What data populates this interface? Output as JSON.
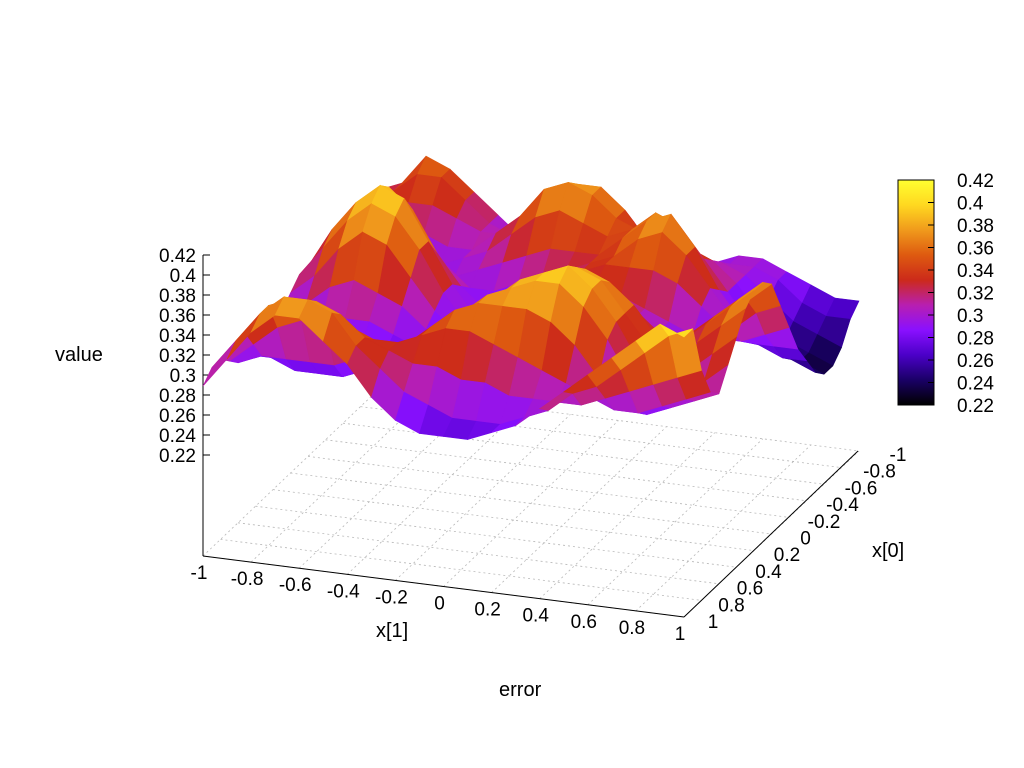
{
  "chart_data": {
    "type": "surface3d",
    "title": "error",
    "xlabel": "x[1]",
    "ylabel": "x[0]",
    "zlabel": "value",
    "x_ticks": [
      "-1",
      "-0.8",
      "-0.6",
      "-0.4",
      "-0.2",
      "0",
      "0.2",
      "0.4",
      "0.6",
      "0.8",
      "1"
    ],
    "y_ticks": [
      "-1",
      "-0.8",
      "-0.6",
      "-0.4",
      "-0.2",
      "0",
      "0.2",
      "0.4",
      "0.6",
      "0.8",
      "1"
    ],
    "z_ticks": [
      "0.42",
      "0.4",
      "0.38",
      "0.36",
      "0.34",
      "0.32",
      "0.3",
      "0.28",
      "0.26",
      "0.24",
      "0.22"
    ],
    "colorbar_ticks": [
      "0.42",
      "0.4",
      "0.38",
      "0.36",
      "0.34",
      "0.32",
      "0.3",
      "0.28",
      "0.26",
      "0.24",
      "0.22"
    ],
    "xlim": [
      -1,
      1
    ],
    "ylim": [
      -1,
      1
    ],
    "zlim": [
      0.22,
      0.42
    ],
    "grid": true,
    "colormap": [
      "#000000",
      "#1a0066",
      "#4b00c8",
      "#8a10ff",
      "#b81fb0",
      "#cc2a1a",
      "#de5a10",
      "#f09a1c",
      "#ffd820",
      "#ffff30"
    ],
    "surface_z": [
      [
        0.32,
        0.33,
        0.36,
        0.35,
        0.33,
        0.31,
        0.29,
        0.28,
        0.29,
        0.31,
        0.31,
        0.3,
        0.29,
        0.28,
        0.29,
        0.3,
        0.3,
        0.29,
        0.28,
        0.27,
        0.27
      ],
      [
        0.32,
        0.33,
        0.35,
        0.35,
        0.33,
        0.31,
        0.3,
        0.3,
        0.33,
        0.35,
        0.35,
        0.33,
        0.3,
        0.29,
        0.29,
        0.3,
        0.3,
        0.29,
        0.27,
        0.26,
        0.26
      ],
      [
        0.31,
        0.32,
        0.33,
        0.33,
        0.32,
        0.31,
        0.31,
        0.33,
        0.36,
        0.37,
        0.37,
        0.35,
        0.32,
        0.31,
        0.31,
        0.31,
        0.3,
        0.28,
        0.26,
        0.25,
        0.24
      ],
      [
        0.3,
        0.3,
        0.31,
        0.31,
        0.3,
        0.3,
        0.32,
        0.34,
        0.37,
        0.38,
        0.37,
        0.35,
        0.34,
        0.34,
        0.33,
        0.32,
        0.3,
        0.27,
        0.25,
        0.24,
        0.23
      ],
      [
        0.29,
        0.29,
        0.29,
        0.29,
        0.29,
        0.3,
        0.31,
        0.33,
        0.35,
        0.36,
        0.35,
        0.34,
        0.35,
        0.37,
        0.36,
        0.33,
        0.3,
        0.27,
        0.25,
        0.24,
        0.23
      ],
      [
        0.29,
        0.3,
        0.31,
        0.31,
        0.3,
        0.29,
        0.3,
        0.31,
        0.32,
        0.33,
        0.33,
        0.33,
        0.35,
        0.37,
        0.38,
        0.35,
        0.31,
        0.28,
        0.26,
        0.25,
        0.24
      ],
      [
        0.3,
        0.32,
        0.35,
        0.36,
        0.34,
        0.31,
        0.29,
        0.29,
        0.3,
        0.31,
        0.32,
        0.33,
        0.34,
        0.36,
        0.37,
        0.35,
        0.32,
        0.29,
        0.27,
        0.26,
        0.26
      ],
      [
        0.31,
        0.34,
        0.37,
        0.39,
        0.37,
        0.33,
        0.3,
        0.28,
        0.28,
        0.29,
        0.31,
        0.33,
        0.34,
        0.34,
        0.34,
        0.33,
        0.31,
        0.29,
        0.28,
        0.28,
        0.28
      ],
      [
        0.31,
        0.35,
        0.38,
        0.4,
        0.39,
        0.35,
        0.31,
        0.28,
        0.27,
        0.28,
        0.3,
        0.32,
        0.33,
        0.32,
        0.31,
        0.3,
        0.29,
        0.29,
        0.29,
        0.3,
        0.31
      ],
      [
        0.31,
        0.34,
        0.37,
        0.39,
        0.38,
        0.35,
        0.31,
        0.28,
        0.27,
        0.28,
        0.3,
        0.32,
        0.33,
        0.32,
        0.31,
        0.3,
        0.29,
        0.3,
        0.31,
        0.33,
        0.34
      ],
      [
        0.3,
        0.32,
        0.35,
        0.37,
        0.36,
        0.33,
        0.3,
        0.28,
        0.27,
        0.28,
        0.3,
        0.32,
        0.34,
        0.34,
        0.33,
        0.31,
        0.3,
        0.31,
        0.33,
        0.35,
        0.37
      ],
      [
        0.29,
        0.3,
        0.32,
        0.33,
        0.32,
        0.31,
        0.29,
        0.28,
        0.28,
        0.29,
        0.31,
        0.33,
        0.35,
        0.36,
        0.35,
        0.33,
        0.31,
        0.32,
        0.34,
        0.36,
        0.38
      ],
      [
        0.28,
        0.29,
        0.29,
        0.3,
        0.3,
        0.29,
        0.28,
        0.28,
        0.29,
        0.31,
        0.33,
        0.35,
        0.37,
        0.38,
        0.37,
        0.35,
        0.32,
        0.32,
        0.34,
        0.36,
        0.38
      ],
      [
        0.28,
        0.28,
        0.28,
        0.28,
        0.28,
        0.28,
        0.28,
        0.29,
        0.31,
        0.33,
        0.35,
        0.37,
        0.38,
        0.39,
        0.38,
        0.35,
        0.32,
        0.31,
        0.33,
        0.35,
        0.37
      ],
      [
        0.28,
        0.28,
        0.28,
        0.27,
        0.27,
        0.27,
        0.28,
        0.3,
        0.32,
        0.34,
        0.36,
        0.38,
        0.39,
        0.4,
        0.38,
        0.35,
        0.31,
        0.3,
        0.31,
        0.33,
        0.35
      ],
      [
        0.28,
        0.28,
        0.27,
        0.27,
        0.27,
        0.28,
        0.29,
        0.31,
        0.33,
        0.35,
        0.37,
        0.38,
        0.39,
        0.39,
        0.37,
        0.34,
        0.3,
        0.29,
        0.3,
        0.31,
        0.33
      ],
      [
        0.28,
        0.29,
        0.29,
        0.29,
        0.29,
        0.3,
        0.31,
        0.32,
        0.34,
        0.36,
        0.37,
        0.37,
        0.37,
        0.36,
        0.34,
        0.31,
        0.29,
        0.28,
        0.29,
        0.3,
        0.31
      ],
      [
        0.29,
        0.31,
        0.33,
        0.34,
        0.34,
        0.34,
        0.33,
        0.33,
        0.34,
        0.35,
        0.35,
        0.34,
        0.33,
        0.32,
        0.31,
        0.3,
        0.29,
        0.29,
        0.3,
        0.31,
        0.32
      ],
      [
        0.3,
        0.33,
        0.36,
        0.37,
        0.37,
        0.36,
        0.34,
        0.33,
        0.32,
        0.32,
        0.31,
        0.31,
        0.3,
        0.3,
        0.3,
        0.3,
        0.31,
        0.32,
        0.33,
        0.34,
        0.35
      ],
      [
        0.3,
        0.33,
        0.36,
        0.38,
        0.38,
        0.37,
        0.34,
        0.32,
        0.3,
        0.29,
        0.28,
        0.28,
        0.28,
        0.29,
        0.3,
        0.32,
        0.33,
        0.35,
        0.37,
        0.39,
        0.4
      ],
      [
        0.29,
        0.32,
        0.35,
        0.37,
        0.37,
        0.35,
        0.33,
        0.3,
        0.28,
        0.27,
        0.27,
        0.27,
        0.28,
        0.29,
        0.31,
        0.33,
        0.35,
        0.37,
        0.39,
        0.41,
        0.4
      ]
    ]
  }
}
